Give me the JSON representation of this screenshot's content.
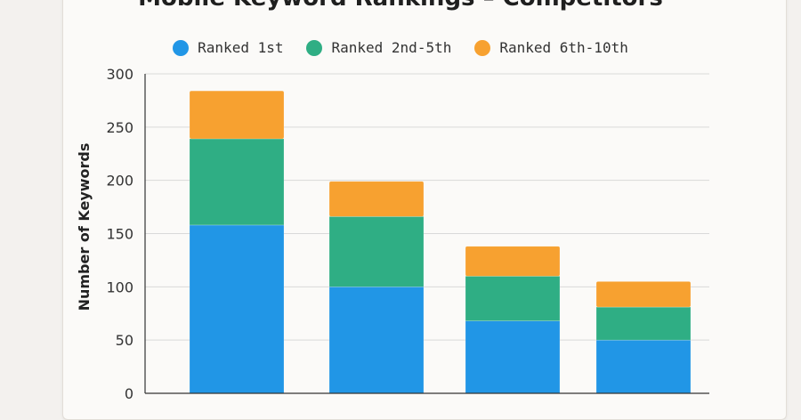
{
  "colors": {
    "ranked_1st": "#2196e6",
    "ranked_2nd_5th": "#2fae84",
    "ranked_6th_10th": "#f7a130",
    "gridline": "#d9d9d9",
    "axis": "#333333"
  },
  "chart_data": {
    "type": "bar",
    "stacked": true,
    "title": "Mobile Keyword Rankings – Competitors",
    "xlabel": "",
    "ylabel": "Number of Keywords",
    "ylim": [
      0,
      300
    ],
    "yticks": [
      "0",
      "50",
      "100",
      "150",
      "200",
      "250",
      "300"
    ],
    "categories": [
      "",
      "",
      "",
      ""
    ],
    "series": [
      {
        "name": "Ranked 1st",
        "values": [
          158,
          100,
          68,
          50
        ],
        "color": "#2196e6"
      },
      {
        "name": "Ranked 2nd-5th",
        "values": [
          81,
          66,
          42,
          31
        ],
        "color": "#2fae84"
      },
      {
        "name": "Ranked 6th-10th",
        "values": [
          45,
          33,
          28,
          24
        ],
        "color": "#f7a130"
      }
    ],
    "grid": true,
    "legend": "top-center"
  }
}
